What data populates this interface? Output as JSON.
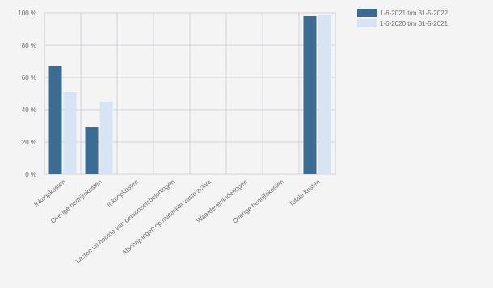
{
  "chart_data": {
    "type": "bar",
    "categories": [
      "Inkoopkosten",
      "Overige bedrijfskosten",
      "Inkoopkosten",
      "Lasten uit hoofde van personeelsbeloningen",
      "Afschrijvingen op materiële vaste activa",
      "Waardeveranderingen",
      "Overige bedrijfskosten",
      "Totale kosten"
    ],
    "series": [
      {
        "name": "1-6-2021 t/m 31-5-2022",
        "color": "#3d6c92",
        "values": [
          67,
          29,
          0,
          0,
          0,
          0,
          0,
          98
        ]
      },
      {
        "name": "1-6-2020 t/m 31-5-2021",
        "color": "#d6e4f3",
        "values": [
          51,
          45,
          0,
          0,
          0,
          0,
          0,
          99
        ]
      }
    ],
    "yticks": [
      "0 %",
      "20 %",
      "40 %",
      "60 %",
      "80 %",
      "100 %"
    ],
    "ylim": [
      0,
      100
    ],
    "legend_position": "top-right",
    "grid": true
  }
}
